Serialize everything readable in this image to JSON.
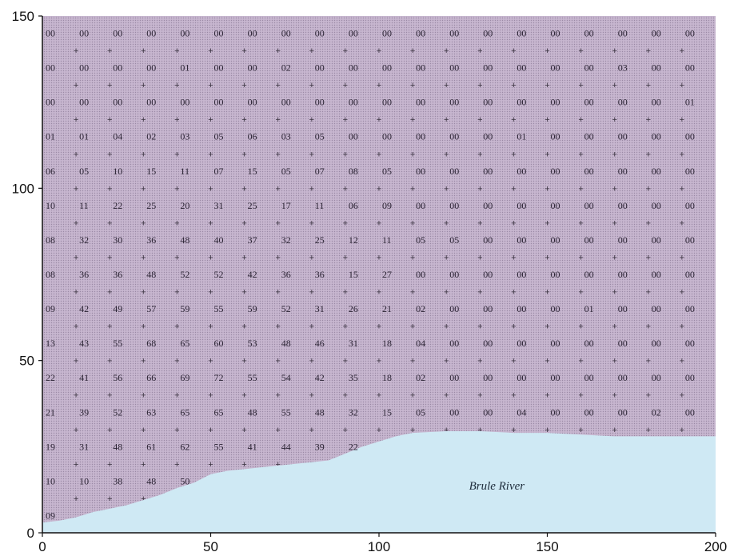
{
  "chart_data": {
    "type": "heatmap",
    "xlabel": "",
    "ylabel": "",
    "xlim": [
      0,
      200
    ],
    "ylim": [
      0,
      150
    ],
    "x_ticks": [
      "0",
      "50",
      "100",
      "150",
      "200"
    ],
    "y_ticks": [
      "0",
      "50",
      "100",
      "150"
    ],
    "cell_x": [
      0,
      10,
      20,
      30,
      40,
      50,
      60,
      70,
      80,
      90,
      100,
      110,
      120,
      130,
      140,
      150,
      160,
      170,
      180,
      190
    ],
    "row_y": [
      145,
      135,
      125,
      115,
      105,
      95,
      85,
      75,
      65,
      55,
      45,
      35,
      25,
      15,
      5
    ],
    "rows": [
      [
        "00",
        "00",
        "00",
        "00",
        "00",
        "00",
        "00",
        "00",
        "00",
        "00",
        "00",
        "00",
        "00",
        "00",
        "00",
        "00",
        "00",
        "00",
        "00",
        "00"
      ],
      [
        "00",
        "00",
        "00",
        "00",
        "01",
        "00",
        "00",
        "02",
        "00",
        "00",
        "00",
        "00",
        "00",
        "00",
        "00",
        "00",
        "00",
        "03",
        "00",
        "00"
      ],
      [
        "00",
        "00",
        "00",
        "00",
        "00",
        "00",
        "00",
        "00",
        "00",
        "00",
        "00",
        "00",
        "00",
        "00",
        "00",
        "00",
        "00",
        "00",
        "00",
        "01"
      ],
      [
        "01",
        "01",
        "04",
        "02",
        "03",
        "05",
        "06",
        "03",
        "05",
        "00",
        "00",
        "00",
        "00",
        "00",
        "01",
        "00",
        "00",
        "00",
        "00",
        "00"
      ],
      [
        "06",
        "05",
        "10",
        "15",
        "11",
        "07",
        "15",
        "05",
        "07",
        "08",
        "05",
        "00",
        "00",
        "00",
        "00",
        "00",
        "00",
        "00",
        "00",
        "00"
      ],
      [
        "10",
        "11",
        "22",
        "25",
        "20",
        "31",
        "25",
        "17",
        "11",
        "06",
        "09",
        "00",
        "00",
        "00",
        "00",
        "00",
        "00",
        "00",
        "00",
        "00"
      ],
      [
        "08",
        "32",
        "30",
        "36",
        "48",
        "40",
        "37",
        "32",
        "25",
        "12",
        "11",
        "05",
        "05",
        "00",
        "00",
        "00",
        "00",
        "00",
        "00",
        "00"
      ],
      [
        "08",
        "36",
        "36",
        "48",
        "52",
        "52",
        "42",
        "36",
        "36",
        "15",
        "27",
        "00",
        "00",
        "00",
        "00",
        "00",
        "00",
        "00",
        "00",
        "00"
      ],
      [
        "09",
        "42",
        "49",
        "57",
        "59",
        "55",
        "59",
        "52",
        "31",
        "26",
        "21",
        "02",
        "00",
        "00",
        "00",
        "00",
        "01",
        "00",
        "00",
        "00"
      ],
      [
        "13",
        "43",
        "55",
        "68",
        "65",
        "60",
        "53",
        "48",
        "46",
        "31",
        "18",
        "04",
        "00",
        "00",
        "00",
        "00",
        "00",
        "00",
        "00",
        "00"
      ],
      [
        "22",
        "41",
        "56",
        "66",
        "69",
        "72",
        "55",
        "54",
        "42",
        "35",
        "18",
        "02",
        "00",
        "00",
        "00",
        "00",
        "00",
        "00",
        "00",
        "00"
      ],
      [
        "21",
        "39",
        "52",
        "63",
        "65",
        "65",
        "48",
        "55",
        "48",
        "32",
        "15",
        "05",
        "00",
        "00",
        "04",
        "00",
        "00",
        "00",
        "02",
        "00"
      ],
      [
        "19",
        "31",
        "48",
        "61",
        "62",
        "55",
        "41",
        "44",
        "39",
        "22",
        "",
        "",
        "",
        "",
        "",
        "",
        "",
        "",
        "",
        ""
      ],
      [
        "10",
        "10",
        "38",
        "48",
        "50",
        "",
        "",
        "",
        "",
        "",
        "",
        "",
        "",
        "",
        "",
        "",
        "",
        "",
        "",
        ""
      ],
      [
        "09",
        "",
        "",
        "",
        "",
        "",
        "",
        "",
        "",
        "",
        "",
        "",
        "",
        "",
        "",
        "",
        "",
        "",
        "",
        ""
      ]
    ],
    "river": {
      "name": "Brule River",
      "shore_x": [
        0,
        5,
        10,
        15,
        20,
        25,
        30,
        35,
        40,
        45,
        50,
        55,
        60,
        65,
        70,
        75,
        80,
        85,
        90,
        95,
        100,
        105,
        110,
        120,
        130,
        140,
        150,
        160,
        170,
        180,
        190,
        200
      ],
      "shore_y": [
        3,
        3.5,
        4.5,
        6,
        7,
        8,
        9.5,
        11,
        13,
        14.5,
        17,
        18,
        18.5,
        19,
        19.5,
        20,
        20.5,
        21,
        23,
        25,
        26.5,
        28,
        29,
        29.5,
        29.5,
        29,
        29,
        28.5,
        28,
        28,
        28,
        28
      ]
    },
    "colors": {
      "land": "#c7b6cf",
      "land_dot": "#9b8aa6",
      "river": "#cfe9f4",
      "axis": "#111111"
    }
  }
}
